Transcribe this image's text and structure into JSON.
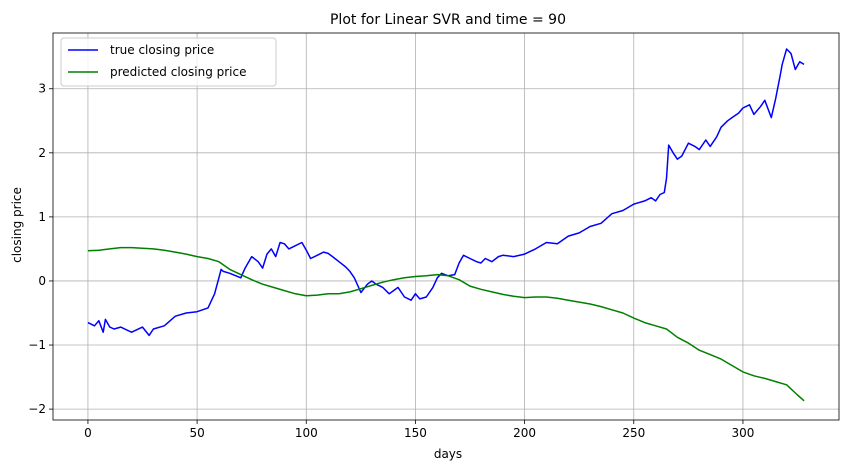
{
  "chart_data": {
    "type": "line",
    "title": "Plot for Linear SVR and time = 90",
    "xlabel": "days",
    "ylabel": "closing price",
    "xlim": [
      -16,
      344
    ],
    "ylim": [
      -2.17,
      3.87
    ],
    "xticks": [
      0,
      50,
      100,
      150,
      200,
      250,
      300
    ],
    "yticks": [
      -2,
      -1,
      0,
      1,
      2,
      3
    ],
    "ytick_labels": [
      "−2",
      "−1",
      "0",
      "1",
      "2",
      "3"
    ],
    "grid": true,
    "legend_position": "upper-left",
    "series": [
      {
        "name": "true closing price",
        "color": "#0000ff",
        "x": [
          0,
          3,
          5,
          7,
          8,
          10,
          12,
          15,
          20,
          25,
          28,
          30,
          35,
          40,
          45,
          50,
          55,
          58,
          60,
          61,
          62,
          65,
          70,
          72,
          75,
          78,
          80,
          82,
          84,
          86,
          88,
          90,
          92,
          95,
          98,
          100,
          102,
          105,
          108,
          110,
          112,
          115,
          118,
          120,
          122,
          125,
          128,
          130,
          132,
          135,
          138,
          140,
          142,
          145,
          148,
          150,
          152,
          155,
          158,
          160,
          162,
          165,
          168,
          170,
          172,
          175,
          178,
          180,
          182,
          185,
          188,
          190,
          195,
          200,
          205,
          210,
          215,
          220,
          225,
          230,
          235,
          240,
          245,
          250,
          255,
          258,
          260,
          262,
          264,
          265,
          266,
          268,
          270,
          272,
          275,
          278,
          280,
          283,
          285,
          288,
          290,
          293,
          295,
          298,
          300,
          303,
          305,
          308,
          310,
          313,
          315,
          317,
          318,
          320,
          322,
          324,
          326,
          328
        ],
        "y": [
          -0.65,
          -0.7,
          -0.62,
          -0.8,
          -0.6,
          -0.72,
          -0.75,
          -0.72,
          -0.8,
          -0.72,
          -0.85,
          -0.75,
          -0.7,
          -0.55,
          -0.5,
          -0.48,
          -0.42,
          -0.2,
          0.05,
          0.18,
          0.15,
          0.12,
          0.05,
          0.2,
          0.38,
          0.3,
          0.2,
          0.42,
          0.5,
          0.38,
          0.6,
          0.58,
          0.5,
          0.55,
          0.6,
          0.48,
          0.35,
          0.4,
          0.45,
          0.43,
          0.38,
          0.3,
          0.22,
          0.15,
          0.05,
          -0.18,
          -0.05,
          0.0,
          -0.05,
          -0.1,
          -0.2,
          -0.15,
          -0.1,
          -0.25,
          -0.3,
          -0.2,
          -0.28,
          -0.25,
          -0.1,
          0.05,
          0.12,
          0.08,
          0.1,
          0.28,
          0.4,
          0.35,
          0.3,
          0.28,
          0.35,
          0.3,
          0.38,
          0.4,
          0.38,
          0.42,
          0.5,
          0.6,
          0.58,
          0.7,
          0.75,
          0.85,
          0.9,
          1.05,
          1.1,
          1.2,
          1.25,
          1.3,
          1.25,
          1.35,
          1.38,
          1.6,
          2.12,
          2.0,
          1.9,
          1.95,
          2.15,
          2.1,
          2.05,
          2.2,
          2.1,
          2.25,
          2.4,
          2.5,
          2.55,
          2.62,
          2.7,
          2.75,
          2.6,
          2.72,
          2.82,
          2.55,
          2.85,
          3.2,
          3.38,
          3.62,
          3.55,
          3.3,
          3.42,
          3.38
        ]
      },
      {
        "name": "predicted closing price",
        "color": "#008000",
        "x": [
          0,
          5,
          10,
          15,
          20,
          25,
          30,
          35,
          40,
          45,
          50,
          55,
          60,
          65,
          70,
          75,
          80,
          85,
          90,
          95,
          100,
          105,
          110,
          115,
          120,
          125,
          130,
          135,
          140,
          145,
          150,
          155,
          160,
          165,
          170,
          175,
          180,
          185,
          190,
          195,
          200,
          205,
          210,
          215,
          220,
          225,
          230,
          235,
          240,
          245,
          250,
          255,
          260,
          265,
          270,
          275,
          280,
          285,
          290,
          295,
          300,
          305,
          310,
          315,
          320,
          325,
          328
        ],
        "y": [
          0.47,
          0.48,
          0.5,
          0.52,
          0.52,
          0.51,
          0.5,
          0.48,
          0.45,
          0.42,
          0.38,
          0.35,
          0.3,
          0.18,
          0.1,
          0.02,
          -0.05,
          -0.1,
          -0.15,
          -0.2,
          -0.23,
          -0.22,
          -0.2,
          -0.2,
          -0.17,
          -0.12,
          -0.07,
          -0.02,
          0.02,
          0.05,
          0.07,
          0.08,
          0.1,
          0.08,
          0.02,
          -0.08,
          -0.13,
          -0.17,
          -0.21,
          -0.24,
          -0.26,
          -0.25,
          -0.25,
          -0.27,
          -0.3,
          -0.33,
          -0.36,
          -0.4,
          -0.45,
          -0.5,
          -0.58,
          -0.65,
          -0.7,
          -0.75,
          -0.88,
          -0.97,
          -1.08,
          -1.15,
          -1.22,
          -1.32,
          -1.42,
          -1.48,
          -1.52,
          -1.57,
          -1.62,
          -1.78,
          -1.87
        ]
      }
    ]
  }
}
